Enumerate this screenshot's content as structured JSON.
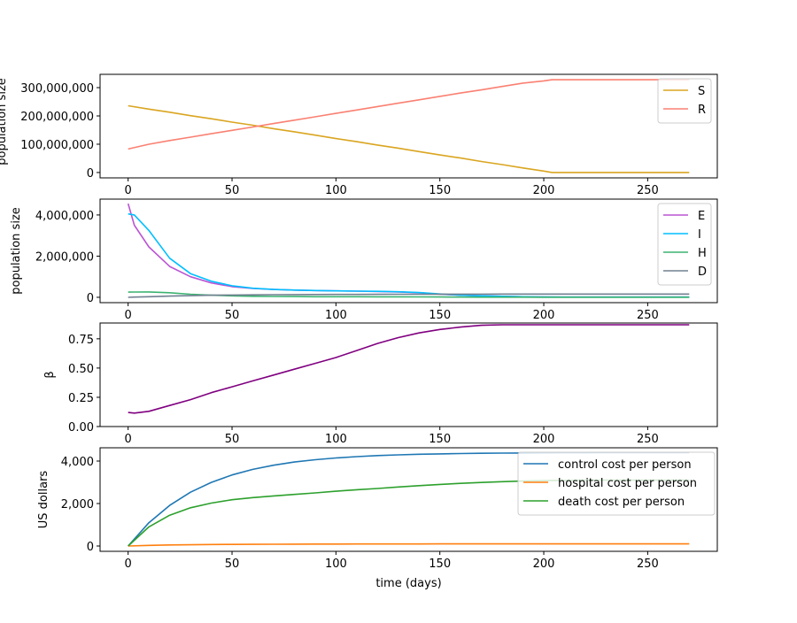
{
  "chart_data": [
    {
      "type": "line",
      "ylabel": "population size",
      "xlim": [
        -13.5,
        283.5
      ],
      "ylim": [
        -19000000,
        347000000
      ],
      "xticks": [
        0,
        50,
        100,
        150,
        200,
        250
      ],
      "yticks": [
        0,
        100000000,
        200000000,
        300000000
      ],
      "legend": "top-right",
      "grid": false,
      "x": [
        0,
        10,
        20,
        30,
        40,
        50,
        60,
        70,
        80,
        90,
        100,
        110,
        120,
        130,
        140,
        150,
        160,
        170,
        180,
        190,
        200,
        204,
        210,
        220,
        230,
        240,
        250,
        260,
        270
      ],
      "series": [
        {
          "name": "S",
          "color": "#daa520",
          "values": [
            236000000,
            224000000,
            213000000,
            201000000,
            190000000,
            178000000,
            167000000,
            155000000,
            144000000,
            132000000,
            120000000,
            109000000,
            97000000,
            86000000,
            74000000,
            62000000,
            51000000,
            39000000,
            28000000,
            16000000,
            5000000,
            0,
            0,
            0,
            0,
            0,
            0,
            0,
            0
          ]
        },
        {
          "name": "R",
          "color": "#fa8072",
          "values": [
            83000000,
            100000000,
            113000000,
            125000000,
            137000000,
            149000000,
            161000000,
            173000000,
            185000000,
            197000000,
            209000000,
            221000000,
            233000000,
            245000000,
            257000000,
            269000000,
            281000000,
            292000000,
            304000000,
            316000000,
            324000000,
            328000000,
            328000000,
            328000000,
            328000000,
            328000000,
            328000000,
            328000000,
            328000000
          ]
        }
      ]
    },
    {
      "type": "line",
      "ylabel": "population size",
      "xlim": [
        -13.5,
        283.5
      ],
      "ylim": [
        -260000,
        4770000
      ],
      "xticks": [
        0,
        50,
        100,
        150,
        200,
        250
      ],
      "yticks": [
        0,
        2000000,
        4000000
      ],
      "legend": "top-right",
      "grid": false,
      "x": [
        0,
        3,
        10,
        20,
        30,
        40,
        50,
        60,
        70,
        80,
        90,
        100,
        110,
        120,
        130,
        140,
        150,
        160,
        170,
        180,
        190,
        200,
        210,
        220,
        230,
        240,
        250,
        260,
        270
      ],
      "series": [
        {
          "name": "E",
          "color": "#ba55d3",
          "values": [
            4550000,
            3500000,
            2450000,
            1500000,
            1000000,
            700000,
            520000,
            430000,
            380000,
            350000,
            330000,
            310000,
            300000,
            280000,
            260000,
            220000,
            150000,
            100000,
            70000,
            50000,
            30000,
            20000,
            10000,
            10000,
            10000,
            10000,
            10000,
            10000,
            10000
          ]
        },
        {
          "name": "I",
          "color": "#00bfff",
          "values": [
            4050000,
            4000000,
            3250000,
            1900000,
            1150000,
            780000,
            560000,
            440000,
            380000,
            350000,
            330000,
            310000,
            300000,
            290000,
            270000,
            230000,
            160000,
            100000,
            70000,
            50000,
            30000,
            20000,
            10000,
            10000,
            10000,
            10000,
            10000,
            10000,
            10000
          ]
        },
        {
          "name": "H",
          "color": "#3cb371",
          "values": [
            250000,
            255000,
            260000,
            220000,
            150000,
            100000,
            70000,
            50000,
            40000,
            35000,
            30000,
            28000,
            26000,
            24000,
            22000,
            18000,
            14000,
            10000,
            8000,
            6000,
            5000,
            4000,
            3000,
            3000,
            3000,
            3000,
            3000,
            3000,
            3000
          ]
        },
        {
          "name": "D",
          "color": "#708090",
          "values": [
            0,
            10000,
            30000,
            60000,
            80000,
            100000,
            110000,
            120000,
            125000,
            130000,
            135000,
            138000,
            141000,
            144000,
            147000,
            150000,
            152000,
            153000,
            154000,
            155000,
            155000,
            155000,
            155000,
            155000,
            155000,
            155000,
            155000,
            155000,
            155000
          ]
        }
      ]
    },
    {
      "type": "line",
      "ylabel": "β",
      "xlim": [
        -13.5,
        283.5
      ],
      "ylim": [
        0,
        0.885
      ],
      "xticks": [
        0,
        50,
        100,
        150,
        200,
        250
      ],
      "yticks": [
        0.0,
        0.25,
        0.5,
        0.75
      ],
      "grid": false,
      "x": [
        0,
        3,
        10,
        20,
        30,
        40,
        50,
        60,
        70,
        80,
        90,
        100,
        110,
        120,
        130,
        140,
        150,
        160,
        170,
        180,
        190,
        200,
        210,
        220,
        230,
        240,
        250,
        260,
        270
      ],
      "series": [
        {
          "color": "#800080",
          "values": [
            0.12,
            0.115,
            0.13,
            0.18,
            0.23,
            0.29,
            0.34,
            0.39,
            0.44,
            0.49,
            0.54,
            0.59,
            0.65,
            0.71,
            0.76,
            0.8,
            0.83,
            0.85,
            0.865,
            0.87,
            0.87,
            0.87,
            0.87,
            0.87,
            0.87,
            0.87,
            0.87,
            0.87,
            0.87
          ]
        }
      ]
    },
    {
      "type": "line",
      "ylabel": "US dollars",
      "xlabel": "time (days)",
      "xlim": [
        -13.5,
        283.5
      ],
      "ylim": [
        -250,
        4625
      ],
      "xticks": [
        0,
        50,
        100,
        150,
        200,
        250
      ],
      "yticks": [
        0,
        2000,
        4000
      ],
      "legend": "top-right",
      "grid": false,
      "x": [
        0,
        10,
        20,
        30,
        40,
        50,
        60,
        70,
        80,
        90,
        100,
        110,
        120,
        130,
        140,
        150,
        160,
        170,
        180,
        190,
        200,
        210,
        220,
        230,
        240,
        250,
        260,
        270
      ],
      "series": [
        {
          "name": "control cost per person",
          "color": "#1f77b4",
          "values": [
            0,
            1094,
            1914,
            2534,
            2997,
            3345,
            3607,
            3805,
            3953,
            4063,
            4147,
            4210,
            4257,
            4293,
            4319,
            4339,
            4354,
            4366,
            4374,
            4381,
            4386,
            4390,
            4392,
            4394,
            4396,
            4397,
            4399,
            4400
          ]
        },
        {
          "name": "hospital cost per person",
          "color": "#ff7f0e",
          "values": [
            0,
            30,
            50,
            60,
            70,
            75,
            80,
            84,
            87,
            90,
            92,
            94,
            95,
            96,
            97,
            98,
            99,
            100,
            100,
            100,
            100,
            100,
            100,
            100,
            100,
            100,
            100,
            100
          ]
        },
        {
          "name": "death cost per person",
          "color": "#2ca02c",
          "values": [
            0,
            900,
            1450,
            1800,
            2020,
            2180,
            2280,
            2360,
            2430,
            2500,
            2580,
            2650,
            2710,
            2780,
            2840,
            2900,
            2950,
            2990,
            3030,
            3060,
            3080,
            3090,
            3100,
            3100,
            3100,
            3100,
            3100,
            3100
          ]
        }
      ]
    }
  ]
}
